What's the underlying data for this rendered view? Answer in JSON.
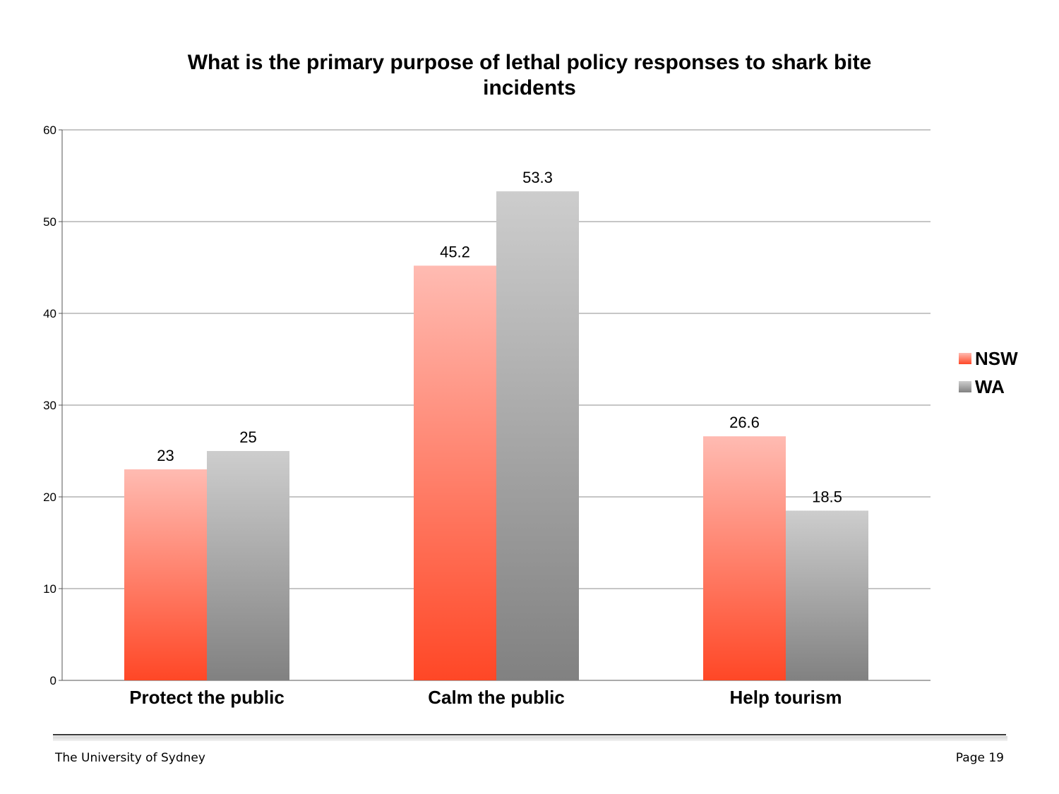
{
  "chart_data": {
    "type": "bar",
    "title_lines": [
      "What is the primary purpose of lethal policy responses to shark bite",
      "incidents"
    ],
    "categories": [
      "Protect the public",
      "Calm the public",
      "Help tourism"
    ],
    "series": [
      {
        "name": "NSW",
        "values": [
          23,
          45.2,
          26.6
        ],
        "color_top": "#ffbbb2",
        "color_bottom": "#ff4726"
      },
      {
        "name": "WA",
        "values": [
          25,
          53.3,
          18.5
        ],
        "color_top": "#cdcdcd",
        "color_bottom": "#818181"
      }
    ],
    "ylim": [
      0,
      60
    ],
    "yticks": [
      0,
      10,
      20,
      30,
      40,
      50,
      60
    ],
    "grid": true,
    "legend_position": "right"
  },
  "footer": {
    "left": "The University of Sydney",
    "right": "Page 19"
  }
}
